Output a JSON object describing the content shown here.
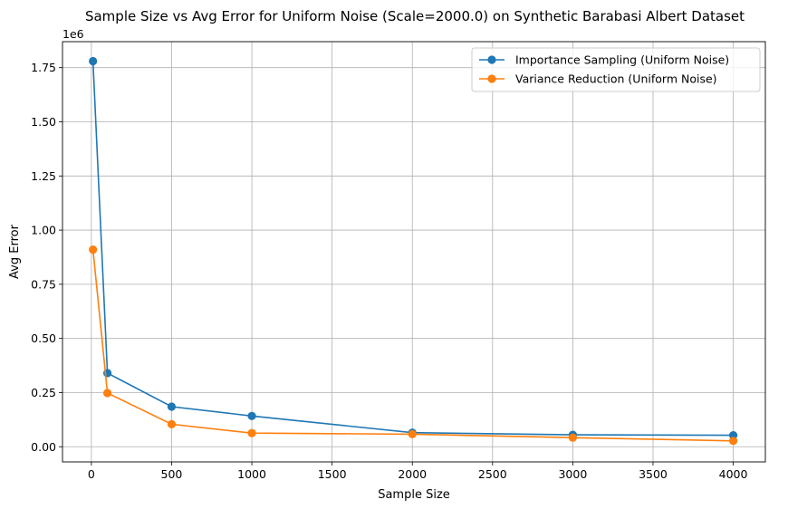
{
  "chart_data": {
    "type": "line",
    "title": "Sample Size vs Avg Error for Uniform Noise (Scale=2000.0) on Synthetic Barabasi Albert Dataset",
    "xlabel": "Sample Size",
    "ylabel": "Avg Error",
    "y_offset_label": "1e6",
    "xlim": [
      -180,
      4200
    ],
    "ylim": [
      -0.07,
      1.87
    ],
    "x_ticks": [
      0,
      500,
      1000,
      1500,
      2000,
      2500,
      3000,
      3500,
      4000
    ],
    "x_tick_labels": [
      "0",
      "500",
      "1000",
      "1500",
      "2000",
      "2500",
      "3000",
      "3500",
      "4000"
    ],
    "y_ticks": [
      0.0,
      0.25,
      0.5,
      0.75,
      1.0,
      1.25,
      1.5,
      1.75
    ],
    "y_tick_labels": [
      "0.00",
      "0.25",
      "0.50",
      "0.75",
      "1.00",
      "1.25",
      "1.50",
      "1.75"
    ],
    "grid": true,
    "legend_position": "top-right",
    "x": [
      10,
      100,
      500,
      1000,
      2000,
      3000,
      4000
    ],
    "series": [
      {
        "name": "Importance Sampling (Uniform Noise)",
        "color": "#1f77b4",
        "marker": "circle",
        "values": [
          1.78,
          0.34,
          0.185,
          0.142,
          0.065,
          0.055,
          0.053
        ]
      },
      {
        "name": "Variance Reduction (Uniform Noise)",
        "color": "#ff7f0e",
        "marker": "circle",
        "values": [
          0.91,
          0.248,
          0.104,
          0.063,
          0.058,
          0.042,
          0.027
        ]
      }
    ]
  }
}
